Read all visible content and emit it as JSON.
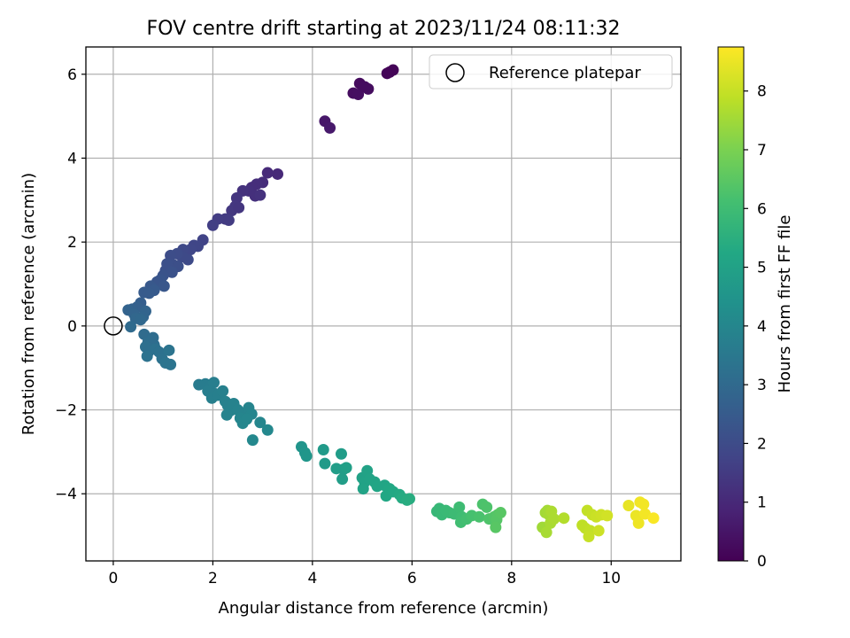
{
  "chart_data": {
    "type": "scatter",
    "title": "FOV centre drift starting at 2023/11/24 08:11:32",
    "xlabel": "Angular distance from reference (arcmin)",
    "ylabel": "Rotation from reference (arcmin)",
    "xlim": [
      -0.55,
      11.4
    ],
    "ylim": [
      -5.6,
      6.65
    ],
    "xticks": [
      0,
      2,
      4,
      6,
      8,
      10
    ],
    "yticks": [
      -4,
      -2,
      0,
      2,
      4,
      6
    ],
    "grid": true,
    "legend": {
      "position": "top-right",
      "entries": [
        "Reference platepar"
      ]
    },
    "reference_point": {
      "x": 0,
      "y": 0,
      "label": "Reference platepar"
    },
    "colorbar": {
      "label": "Hours from first FF file",
      "range": [
        0,
        8.75
      ],
      "ticks": [
        0,
        1,
        2,
        3,
        4,
        5,
        6,
        7,
        8
      ],
      "colormap": "viridis"
    },
    "points": [
      [
        5.55,
        6.05,
        0.05
      ],
      [
        5.62,
        6.1,
        0.08
      ],
      [
        5.5,
        6.02,
        0.1
      ],
      [
        4.95,
        5.78,
        0.25
      ],
      [
        5.12,
        5.65,
        0.3
      ],
      [
        4.82,
        5.55,
        0.33
      ],
      [
        4.92,
        5.52,
        0.35
      ],
      [
        5.05,
        5.7,
        0.28
      ],
      [
        4.25,
        4.88,
        0.55
      ],
      [
        4.35,
        4.72,
        0.6
      ],
      [
        3.3,
        3.62,
        1.0
      ],
      [
        3.1,
        3.65,
        1.05
      ],
      [
        3.0,
        3.42,
        1.1
      ],
      [
        2.88,
        3.38,
        1.15
      ],
      [
        2.78,
        3.3,
        1.15
      ],
      [
        2.72,
        3.22,
        1.2
      ],
      [
        2.85,
        3.1,
        1.2
      ],
      [
        2.95,
        3.12,
        1.25
      ],
      [
        2.6,
        3.22,
        1.25
      ],
      [
        2.48,
        3.05,
        1.35
      ],
      [
        2.45,
        2.85,
        1.4
      ],
      [
        2.38,
        2.75,
        1.42
      ],
      [
        2.52,
        2.82,
        1.38
      ],
      [
        2.25,
        2.55,
        1.5
      ],
      [
        2.32,
        2.52,
        1.52
      ],
      [
        2.1,
        2.55,
        1.55
      ],
      [
        2.0,
        2.4,
        1.6
      ],
      [
        1.8,
        2.05,
        1.75
      ],
      [
        1.7,
        1.9,
        1.8
      ],
      [
        1.62,
        1.92,
        1.82
      ],
      [
        1.55,
        1.82,
        1.85
      ],
      [
        1.4,
        1.82,
        1.9
      ],
      [
        1.5,
        1.58,
        1.95
      ],
      [
        1.38,
        1.65,
        1.95
      ],
      [
        1.28,
        1.72,
        2.0
      ],
      [
        1.15,
        1.68,
        2.05
      ],
      [
        1.22,
        1.45,
        2.1
      ],
      [
        1.3,
        1.42,
        2.1
      ],
      [
        1.08,
        1.48,
        2.15
      ],
      [
        1.05,
        1.32,
        2.15
      ],
      [
        1.18,
        1.28,
        2.2
      ],
      [
        1.0,
        1.2,
        2.25
      ],
      [
        0.95,
        1.1,
        2.3
      ],
      [
        0.88,
        1.05,
        2.3
      ],
      [
        1.02,
        0.95,
        2.35
      ],
      [
        0.75,
        0.95,
        2.4
      ],
      [
        0.82,
        0.85,
        2.45
      ],
      [
        0.62,
        0.8,
        2.5
      ],
      [
        0.72,
        0.78,
        2.5
      ],
      [
        0.55,
        0.55,
        2.6
      ],
      [
        0.48,
        0.45,
        2.65
      ],
      [
        0.38,
        0.4,
        2.7
      ],
      [
        0.3,
        0.38,
        2.75
      ],
      [
        0.42,
        0.28,
        2.8
      ],
      [
        0.65,
        0.35,
        2.8
      ],
      [
        0.6,
        0.22,
        2.85
      ],
      [
        0.45,
        0.18,
        2.9
      ],
      [
        0.55,
        0.15,
        2.95
      ],
      [
        0.35,
        -0.02,
        3.0
      ],
      [
        0.62,
        -0.2,
        3.05
      ],
      [
        0.7,
        -0.38,
        3.1
      ],
      [
        0.78,
        -0.32,
        3.15
      ],
      [
        0.82,
        -0.45,
        3.15
      ],
      [
        0.65,
        -0.5,
        3.2
      ],
      [
        0.72,
        -0.6,
        3.2
      ],
      [
        0.85,
        -0.55,
        3.25
      ],
      [
        0.92,
        -0.62,
        3.25
      ],
      [
        0.68,
        -0.72,
        3.3
      ],
      [
        0.98,
        -0.78,
        3.3
      ],
      [
        1.05,
        -0.88,
        3.35
      ],
      [
        1.15,
        -0.92,
        3.35
      ],
      [
        1.12,
        -0.58,
        3.35
      ],
      [
        0.8,
        -0.28,
        3.1
      ],
      [
        1.72,
        -1.4,
        3.6
      ],
      [
        1.85,
        -1.38,
        3.65
      ],
      [
        1.95,
        -1.42,
        3.65
      ],
      [
        2.02,
        -1.35,
        3.7
      ],
      [
        1.9,
        -1.55,
        3.7
      ],
      [
        2.05,
        -1.62,
        3.72
      ],
      [
        1.98,
        -1.72,
        3.75
      ],
      [
        2.1,
        -1.65,
        3.75
      ],
      [
        2.2,
        -1.55,
        3.78
      ],
      [
        2.25,
        -1.8,
        3.8
      ],
      [
        2.3,
        -1.9,
        3.82
      ],
      [
        2.42,
        -1.85,
        3.85
      ],
      [
        2.35,
        -2.02,
        3.85
      ],
      [
        2.5,
        -2.0,
        3.88
      ],
      [
        2.28,
        -2.12,
        3.9
      ],
      [
        2.62,
        -2.08,
        3.9
      ],
      [
        2.72,
        -1.95,
        3.92
      ],
      [
        2.78,
        -2.1,
        3.95
      ],
      [
        2.55,
        -2.2,
        3.95
      ],
      [
        2.6,
        -2.32,
        3.98
      ],
      [
        2.68,
        -2.22,
        3.98
      ],
      [
        2.95,
        -2.3,
        4.0
      ],
      [
        3.1,
        -2.48,
        4.05
      ],
      [
        2.8,
        -2.72,
        4.05
      ],
      [
        3.78,
        -2.88,
        4.5
      ],
      [
        3.85,
        -3.02,
        4.52
      ],
      [
        3.88,
        -3.1,
        4.55
      ],
      [
        4.22,
        -2.95,
        4.7
      ],
      [
        4.25,
        -3.28,
        4.72
      ],
      [
        4.58,
        -3.05,
        4.8
      ],
      [
        4.48,
        -3.4,
        4.82
      ],
      [
        4.62,
        -3.42,
        4.85
      ],
      [
        4.6,
        -3.65,
        4.85
      ],
      [
        4.68,
        -3.38,
        4.9
      ],
      [
        5.0,
        -3.62,
        5.0
      ],
      [
        5.05,
        -3.72,
        5.02
      ],
      [
        5.1,
        -3.45,
        5.02
      ],
      [
        5.15,
        -3.65,
        5.05
      ],
      [
        5.25,
        -3.72,
        5.1
      ],
      [
        5.3,
        -3.82,
        5.12
      ],
      [
        5.45,
        -3.8,
        5.15
      ],
      [
        5.55,
        -3.88,
        5.2
      ],
      [
        5.02,
        -3.88,
        5.05
      ],
      [
        5.48,
        -4.05,
        5.22
      ],
      [
        5.62,
        -3.95,
        5.25
      ],
      [
        5.75,
        -4.02,
        5.3
      ],
      [
        5.8,
        -4.1,
        5.35
      ],
      [
        5.9,
        -4.15,
        5.4
      ],
      [
        5.95,
        -4.12,
        5.42
      ],
      [
        6.5,
        -4.42,
        5.8
      ],
      [
        6.55,
        -4.35,
        5.82
      ],
      [
        6.6,
        -4.5,
        5.85
      ],
      [
        6.68,
        -4.4,
        5.88
      ],
      [
        6.75,
        -4.45,
        5.9
      ],
      [
        6.85,
        -4.48,
        5.95
      ],
      [
        6.95,
        -4.32,
        5.98
      ],
      [
        7.0,
        -4.55,
        6.0
      ],
      [
        6.98,
        -4.68,
        6.05
      ],
      [
        7.1,
        -4.6,
        6.1
      ],
      [
        7.2,
        -4.52,
        6.15
      ],
      [
        7.35,
        -4.55,
        6.2
      ],
      [
        7.42,
        -4.25,
        6.25
      ],
      [
        7.5,
        -4.32,
        6.28
      ],
      [
        7.55,
        -4.6,
        6.3
      ],
      [
        7.65,
        -4.55,
        6.35
      ],
      [
        7.72,
        -4.5,
        6.4
      ],
      [
        7.7,
        -4.62,
        6.42
      ],
      [
        7.78,
        -4.45,
        6.45
      ],
      [
        7.68,
        -4.8,
        6.45
      ],
      [
        8.62,
        -4.8,
        7.5
      ],
      [
        8.68,
        -4.45,
        7.52
      ],
      [
        8.72,
        -4.4,
        7.55
      ],
      [
        8.75,
        -4.5,
        7.58
      ],
      [
        8.7,
        -4.92,
        7.6
      ],
      [
        8.78,
        -4.7,
        7.62
      ],
      [
        8.85,
        -4.6,
        7.65
      ],
      [
        8.8,
        -4.42,
        7.65
      ],
      [
        9.05,
        -4.58,
        7.75
      ],
      [
        9.42,
        -4.75,
        7.9
      ],
      [
        9.48,
        -4.82,
        7.92
      ],
      [
        9.52,
        -4.4,
        7.95
      ],
      [
        9.58,
        -4.88,
        7.95
      ],
      [
        9.62,
        -4.5,
        8.0
      ],
      [
        9.55,
        -5.02,
        8.0
      ],
      [
        9.7,
        -4.55,
        8.05
      ],
      [
        9.75,
        -4.88,
        8.08
      ],
      [
        9.8,
        -4.5,
        8.1
      ],
      [
        9.92,
        -4.52,
        8.15
      ],
      [
        10.35,
        -4.28,
        8.45
      ],
      [
        10.5,
        -4.52,
        8.5
      ],
      [
        10.55,
        -4.7,
        8.55
      ],
      [
        10.58,
        -4.2,
        8.58
      ],
      [
        10.65,
        -4.25,
        8.6
      ],
      [
        10.68,
        -4.48,
        8.62
      ],
      [
        10.85,
        -4.58,
        8.7
      ]
    ]
  },
  "colors": {
    "axes": "#000000",
    "grid": "#b0b0b0",
    "legend_border": "#cccccc"
  }
}
